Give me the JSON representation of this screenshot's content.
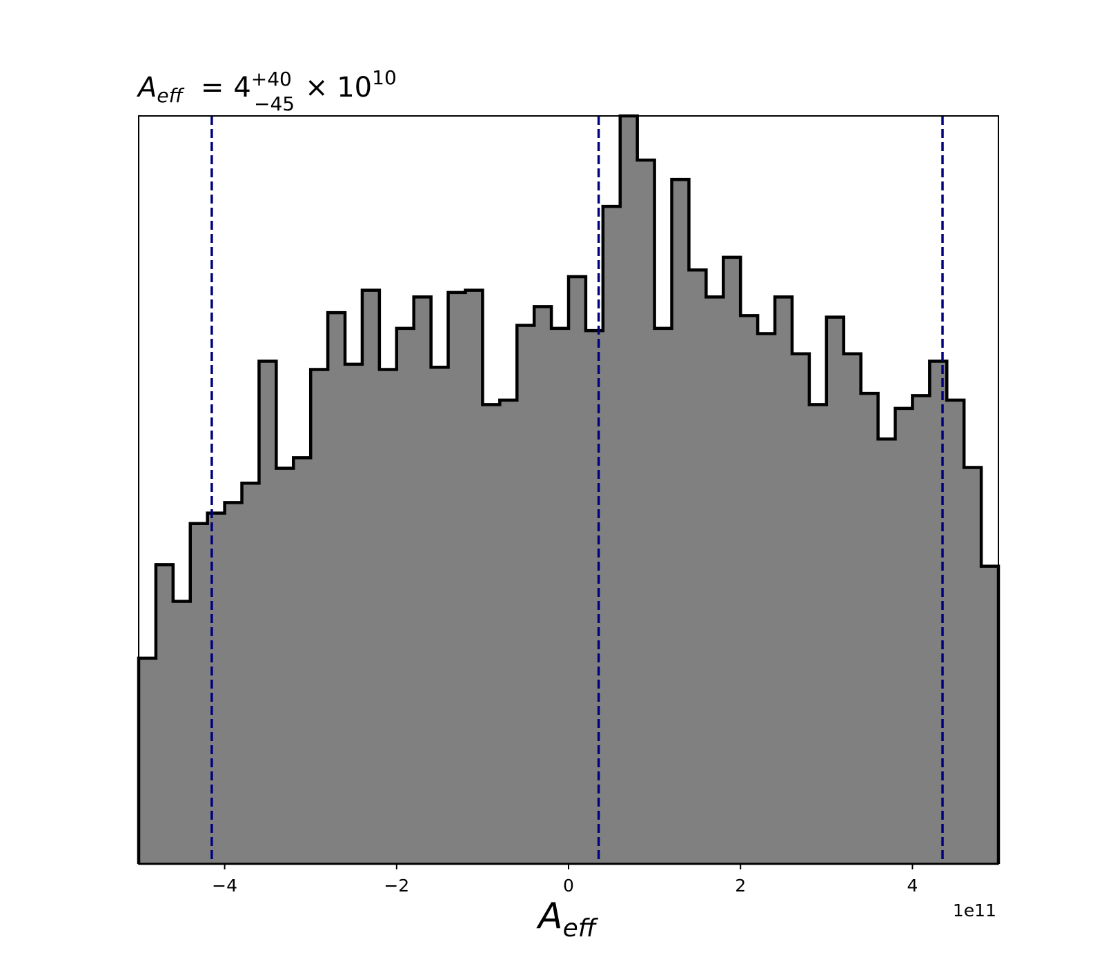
{
  "chart_data": {
    "type": "histogram",
    "title": {
      "symbol": "A",
      "symbol_sub": "eff",
      "equals": "=",
      "base": "4",
      "plus": "+40",
      "minus": "−45",
      "times": "× 10",
      "exponent": "10"
    },
    "xlabel": {
      "symbol": "A",
      "sub": "eff"
    },
    "x_offset_label": "1e11",
    "xlim": [
      -5.0,
      5.0
    ],
    "ylim": [
      0,
      1.0
    ],
    "x_ticks": [
      -4,
      -2,
      0,
      2,
      4
    ],
    "x_tick_labels": [
      "−4",
      "−2",
      "0",
      "2",
      "4"
    ],
    "show_yticks": false,
    "bin_edges": [
      -5.0,
      -4.8,
      -4.6,
      -4.4,
      -4.2,
      -4.0,
      -3.8,
      -3.6,
      -3.4,
      -3.2,
      -3.0,
      -2.8,
      -2.6,
      -2.4,
      -2.2,
      -2.0,
      -1.8,
      -1.6,
      -1.4,
      -1.2,
      -1.0,
      -0.8,
      -0.6,
      -0.4,
      -0.2,
      0.0,
      0.2,
      0.4,
      0.6,
      0.8,
      1.0,
      1.2,
      1.4,
      1.6,
      1.8,
      2.0,
      2.2,
      2.4,
      2.6,
      2.8,
      3.0,
      3.2,
      3.4,
      3.6,
      3.8,
      4.0,
      4.2,
      4.4,
      4.6,
      4.8,
      5.0
    ],
    "counts": [
      0.275,
      0.4,
      0.351,
      0.455,
      0.469,
      0.483,
      0.509,
      0.672,
      0.529,
      0.543,
      0.661,
      0.737,
      0.668,
      0.767,
      0.661,
      0.716,
      0.758,
      0.664,
      0.764,
      0.767,
      0.614,
      0.62,
      0.72,
      0.745,
      0.716,
      0.785,
      0.713,
      0.879,
      1.0,
      0.941,
      0.716,
      0.915,
      0.794,
      0.758,
      0.811,
      0.733,
      0.709,
      0.758,
      0.682,
      0.614,
      0.731,
      0.682,
      0.629,
      0.568,
      0.609,
      0.626,
      0.672,
      0.62,
      0.53,
      0.398
    ],
    "fill_color": "#808080",
    "edge_color": "#000000",
    "quantile_lines": {
      "values": [
        -4.15,
        0.35,
        4.35
      ],
      "color": "#00007f",
      "style": "dashed"
    }
  }
}
